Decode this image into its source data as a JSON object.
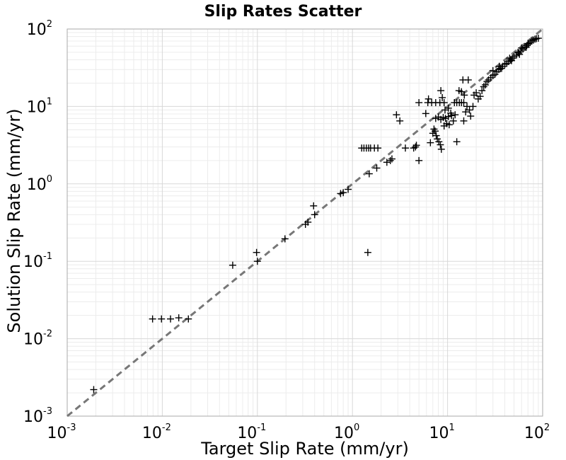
{
  "chart_data": {
    "type": "scatter",
    "title": "Slip Rates Scatter",
    "xlabel": "Target Slip Rate (mm/yr)",
    "ylabel": "Solution Slip Rate (mm/yr)",
    "xscale": "log",
    "yscale": "log",
    "xlim": [
      0.001,
      100
    ],
    "ylim": [
      0.001,
      100
    ],
    "grid": true,
    "x_ticks": [
      {
        "base": "10",
        "exp": "-3"
      },
      {
        "base": "10",
        "exp": "-2"
      },
      {
        "base": "10",
        "exp": "-1"
      },
      {
        "base": "10",
        "exp": "0"
      },
      {
        "base": "10",
        "exp": "1"
      },
      {
        "base": "10",
        "exp": "2"
      }
    ],
    "y_ticks": [
      {
        "base": "10",
        "exp": "-3"
      },
      {
        "base": "10",
        "exp": "-2"
      },
      {
        "base": "10",
        "exp": "-1"
      },
      {
        "base": "10",
        "exp": "0"
      },
      {
        "base": "10",
        "exp": "1"
      },
      {
        "base": "10",
        "exp": "2"
      }
    ],
    "reference_line": {
      "x": [
        0.001,
        100
      ],
      "y": [
        0.001,
        100
      ],
      "color": "#777777",
      "style": "dashed"
    },
    "marker": {
      "symbol": "+",
      "color": "#000000"
    },
    "points": [
      [
        0.0019,
        0.0022
      ],
      [
        0.0079,
        0.018
      ],
      [
        0.0098,
        0.018
      ],
      [
        0.0122,
        0.018
      ],
      [
        0.0149,
        0.0186
      ],
      [
        0.0188,
        0.018
      ],
      [
        0.055,
        0.089
      ],
      [
        0.098,
        0.13
      ],
      [
        0.1,
        0.1
      ],
      [
        0.195,
        0.195
      ],
      [
        0.32,
        0.3
      ],
      [
        0.34,
        0.32
      ],
      [
        0.4,
        0.4
      ],
      [
        0.39,
        0.52
      ],
      [
        0.75,
        0.75
      ],
      [
        0.8,
        0.77
      ],
      [
        0.9,
        0.85
      ],
      [
        1.45,
        0.13
      ],
      [
        1.25,
        2.9
      ],
      [
        1.32,
        2.9
      ],
      [
        1.4,
        2.9
      ],
      [
        1.48,
        2.9
      ],
      [
        1.55,
        2.9
      ],
      [
        1.7,
        2.9
      ],
      [
        1.85,
        2.9
      ],
      [
        1.5,
        1.35
      ],
      [
        1.8,
        1.6
      ],
      [
        2.3,
        1.9
      ],
      [
        2.5,
        2.0
      ],
      [
        2.6,
        2.1
      ],
      [
        2.9,
        7.8
      ],
      [
        3.15,
        6.5
      ],
      [
        3.6,
        2.9
      ],
      [
        4.4,
        2.9
      ],
      [
        4.6,
        3.0
      ],
      [
        4.7,
        3.15
      ],
      [
        5.0,
        2.0
      ],
      [
        5.0,
        11.2
      ],
      [
        5.9,
        8.1
      ],
      [
        6.3,
        12.5
      ],
      [
        6.6,
        3.4
      ],
      [
        6.2,
        11.2
      ],
      [
        6.8,
        11.2
      ],
      [
        7.5,
        11.2
      ],
      [
        8.3,
        11.2
      ],
      [
        9.2,
        11.2
      ],
      [
        7.0,
        4.5
      ],
      [
        7.2,
        5.1
      ],
      [
        7.4,
        4.8
      ],
      [
        7.6,
        4.2
      ],
      [
        7.8,
        3.8
      ],
      [
        8.1,
        3.5
      ],
      [
        8.4,
        3.2
      ],
      [
        8.6,
        2.8
      ],
      [
        7.5,
        7.0
      ],
      [
        8.0,
        7.3
      ],
      [
        8.5,
        6.8
      ],
      [
        9.0,
        7.2
      ],
      [
        9.5,
        7.0
      ],
      [
        10.2,
        7.4
      ],
      [
        11.0,
        7.6
      ],
      [
        12.0,
        7.8
      ],
      [
        8.5,
        16.0
      ],
      [
        8.8,
        13.0
      ],
      [
        9.4,
        9.0
      ],
      [
        10.2,
        9.5
      ],
      [
        10.8,
        8.2
      ],
      [
        11.5,
        6.5
      ],
      [
        12.5,
        3.5
      ],
      [
        9.2,
        5.6
      ],
      [
        9.8,
        6.0
      ],
      [
        10.4,
        5.8
      ],
      [
        11.8,
        11.2
      ],
      [
        12.5,
        11.2
      ],
      [
        13.3,
        11.2
      ],
      [
        14.0,
        11.2
      ],
      [
        14.8,
        11.2
      ],
      [
        13.2,
        16.0
      ],
      [
        14.0,
        15.5
      ],
      [
        14.5,
        22.0
      ],
      [
        15.0,
        14.0
      ],
      [
        16.5,
        22.0
      ],
      [
        16.0,
        10.0
      ],
      [
        15.5,
        8.5
      ],
      [
        17.0,
        9.0
      ],
      [
        17.5,
        7.5
      ],
      [
        14.8,
        6.5
      ],
      [
        18.5,
        10.0
      ],
      [
        19.0,
        14.0
      ],
      [
        20.0,
        15.0
      ],
      [
        21.0,
        12.5
      ],
      [
        22.0,
        13.5
      ],
      [
        23.0,
        16.0
      ],
      [
        24.0,
        18.0
      ],
      [
        25.0,
        19.0
      ],
      [
        26.0,
        21.0
      ],
      [
        27.0,
        22.0
      ],
      [
        28.5,
        23.5
      ],
      [
        30.0,
        25.0
      ],
      [
        31.5,
        26.0
      ],
      [
        33.0,
        28.0
      ],
      [
        34.5,
        30.0
      ],
      [
        36.0,
        31.0
      ],
      [
        38.0,
        33.0
      ],
      [
        40.0,
        35.0
      ],
      [
        42.0,
        36.0
      ],
      [
        44.0,
        38.0
      ],
      [
        46.0,
        40.0
      ],
      [
        48.0,
        42.0
      ],
      [
        50.0,
        44.0
      ],
      [
        53.0,
        46.0
      ],
      [
        56.0,
        49.0
      ],
      [
        59.0,
        52.0
      ],
      [
        62.0,
        55.0
      ],
      [
        65.0,
        58.0
      ],
      [
        68.0,
        61.0
      ],
      [
        71.0,
        64.0
      ],
      [
        74.0,
        67.0
      ],
      [
        77.0,
        70.0
      ],
      [
        80.0,
        72.0
      ],
      [
        83.0,
        74.0
      ],
      [
        86.0,
        75.0
      ],
      [
        90.0,
        76.0
      ],
      [
        35.0,
        33.0
      ],
      [
        45.0,
        42.0
      ],
      [
        55.0,
        50.0
      ],
      [
        60.0,
        57.0
      ],
      [
        70.0,
        65.0
      ],
      [
        37.0,
        31.0
      ],
      [
        47.0,
        39.0
      ],
      [
        57.0,
        47.0
      ],
      [
        67.0,
        58.0
      ],
      [
        30.0,
        29.0
      ]
    ]
  }
}
